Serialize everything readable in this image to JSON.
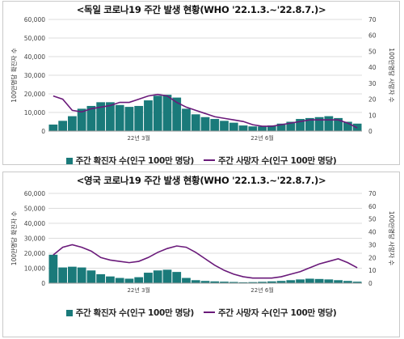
{
  "charts": [
    {
      "title": "<독일 코로나19 주간 발생 현황(WHO '22.1.3.~'22.8.7.)>",
      "legend_bar": "주간 확진자 수(인구 100만 명당)",
      "legend_line": "주간 사망자 수(인구 100만 명당)"
    },
    {
      "title": "<영국 코로나19 주간 발생 현황(WHO '22.1.3.~'22.8.7.)>",
      "legend_bar": "주간 확진자 수(인구 100만 명당)",
      "legend_line": "주간 사망자 수(인구 100만 명당)"
    }
  ],
  "chart_data": [
    {
      "type": "bar",
      "title": "<독일 코로나19 주간 발생 현황(WHO '22.1.3.~'22.8.7.)>",
      "ylabel": "100만명당 확진자 수",
      "y2label": "100만명당 사망자 수",
      "ylim": [
        0,
        60000
      ],
      "y2lim": [
        0,
        70
      ],
      "yticks": [
        "0",
        "10,000",
        "20,000",
        "30,000",
        "40,000",
        "50,000",
        "60,000"
      ],
      "y2ticks": [
        "0",
        "10",
        "20",
        "30",
        "40",
        "50",
        "60",
        "70"
      ],
      "xticks": [
        {
          "label": "22년 3월",
          "index": 9
        },
        {
          "label": "22년 6월",
          "index": 22
        }
      ],
      "grid": true,
      "series": [
        {
          "name": "주간 확진자 수(인구 100만 명당)",
          "type": "bar",
          "color": "#1a7a7a",
          "values": [
            3500,
            5500,
            8000,
            12000,
            13500,
            15500,
            15500,
            14000,
            13000,
            13500,
            16500,
            19000,
            19500,
            18000,
            12000,
            9000,
            7500,
            6500,
            5500,
            4500,
            3000,
            2500,
            2500,
            3000,
            4000,
            5000,
            6500,
            7000,
            7500,
            8000,
            7000,
            5000,
            4000
          ]
        },
        {
          "name": "주간 사망자 수(인구 100만 명당)",
          "type": "line",
          "color": "#6a1a7a",
          "axis": "right",
          "values": [
            22,
            20,
            13,
            12,
            14,
            15,
            16,
            18,
            18,
            20,
            22,
            23,
            22,
            18,
            15,
            13,
            11,
            9,
            8,
            7,
            6,
            4,
            3,
            3,
            4,
            5,
            6,
            7,
            7,
            7,
            7,
            5,
            2
          ]
        }
      ]
    },
    {
      "type": "bar",
      "title": "<영국 코로나19 주간 발생 현황(WHO '22.1.3.~'22.8.7.)>",
      "ylabel": "100만명당 확진자 수",
      "y2label": "100만명당 사망자 수",
      "ylim": [
        0,
        60000
      ],
      "y2lim": [
        0,
        70
      ],
      "yticks": [
        "0",
        "10,000",
        "20,000",
        "30,000",
        "40,000",
        "50,000",
        "60,000"
      ],
      "y2ticks": [
        "0",
        "10",
        "20",
        "30",
        "40",
        "50",
        "60",
        "70"
      ],
      "xticks": [
        {
          "label": "22년 3월",
          "index": 9
        },
        {
          "label": "22년 6월",
          "index": 22
        }
      ],
      "grid": true,
      "series": [
        {
          "name": "주간 확진자 수(인구 100만 명당)",
          "type": "bar",
          "color": "#1a7a7a",
          "values": [
            19000,
            10500,
            11000,
            10500,
            8500,
            6000,
            4500,
            3500,
            3000,
            4000,
            7000,
            8500,
            9000,
            7500,
            3500,
            2000,
            1500,
            1200,
            1000,
            800,
            600,
            700,
            900,
            1200,
            1500,
            2000,
            2500,
            3000,
            2800,
            2500,
            2000,
            1500,
            1000
          ]
        },
        {
          "name": "주간 사망자 수(인구 100만 명당)",
          "type": "line",
          "color": "#6a1a7a",
          "axis": "right",
          "values": [
            22,
            28,
            30,
            28,
            25,
            20,
            18,
            17,
            16,
            17,
            20,
            24,
            27,
            29,
            28,
            24,
            19,
            14,
            10,
            7,
            5,
            4,
            4,
            4,
            5,
            7,
            9,
            12,
            15,
            17,
            19,
            16,
            12
          ]
        }
      ]
    }
  ]
}
